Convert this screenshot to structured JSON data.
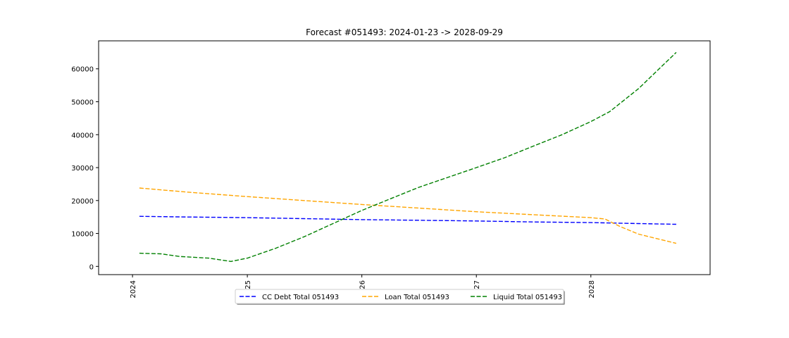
{
  "chart_data": {
    "type": "line",
    "title": "Forecast #051493: 2024-01-23 -> 2028-09-29",
    "xlabel": "",
    "ylabel": "",
    "x_range": [
      "2023-09-15",
      "2029-01-15"
    ],
    "ylim": [
      -2500,
      68500
    ],
    "x_ticks": [
      {
        "date": "2024-01-01",
        "label": "2024"
      },
      {
        "date": "2025-01-01",
        "label": "2025"
      },
      {
        "date": "2026-01-01",
        "label": "2026"
      },
      {
        "date": "2027-01-01",
        "label": "2027"
      },
      {
        "date": "2028-01-01",
        "label": "2028"
      }
    ],
    "y_ticks": [
      0,
      10000,
      20000,
      30000,
      40000,
      50000,
      60000
    ],
    "y_tick_labels": [
      "0",
      "10000",
      "20000",
      "30000",
      "40000",
      "50000",
      "60000"
    ],
    "grid": false,
    "legend_position": "bottom-center",
    "series": [
      {
        "name": "CC Debt Total 051493",
        "color": "#0000ff",
        "style": "dashed",
        "points": [
          [
            "2024-01-23",
            15200
          ],
          [
            "2024-07-01",
            15000
          ],
          [
            "2025-01-01",
            14800
          ],
          [
            "2025-07-01",
            14500
          ],
          [
            "2026-01-01",
            14200
          ],
          [
            "2026-07-01",
            14000
          ],
          [
            "2027-01-01",
            13800
          ],
          [
            "2027-07-01",
            13500
          ],
          [
            "2028-01-01",
            13300
          ],
          [
            "2028-06-01",
            13000
          ],
          [
            "2028-09-29",
            12800
          ]
        ]
      },
      {
        "name": "Loan Total 051493",
        "color": "#ffa500",
        "style": "dashed",
        "points": [
          [
            "2024-01-23",
            23800
          ],
          [
            "2024-07-01",
            22500
          ],
          [
            "2025-01-01",
            21200
          ],
          [
            "2025-07-01",
            20000
          ],
          [
            "2026-01-01",
            18800
          ],
          [
            "2026-07-01",
            17700
          ],
          [
            "2027-01-01",
            16600
          ],
          [
            "2027-07-01",
            15700
          ],
          [
            "2028-01-01",
            14800
          ],
          [
            "2028-02-15",
            14400
          ],
          [
            "2028-04-01",
            12200
          ],
          [
            "2028-06-01",
            9800
          ],
          [
            "2028-09-29",
            7000
          ]
        ]
      },
      {
        "name": "Liquid Total 051493",
        "color": "#008000",
        "style": "dashed",
        "points": [
          [
            "2024-01-23",
            4000
          ],
          [
            "2024-04-01",
            3800
          ],
          [
            "2024-06-01",
            3000
          ],
          [
            "2024-09-01",
            2500
          ],
          [
            "2024-11-10",
            1500
          ],
          [
            "2025-01-01",
            2500
          ],
          [
            "2025-04-01",
            5500
          ],
          [
            "2025-07-01",
            9000
          ],
          [
            "2025-10-01",
            13000
          ],
          [
            "2026-01-01",
            17000
          ],
          [
            "2026-04-01",
            20500
          ],
          [
            "2026-07-01",
            24000
          ],
          [
            "2026-10-01",
            27000
          ],
          [
            "2027-01-01",
            30000
          ],
          [
            "2027-04-01",
            33000
          ],
          [
            "2027-07-01",
            36500
          ],
          [
            "2027-10-01",
            40000
          ],
          [
            "2028-01-01",
            44000
          ],
          [
            "2028-03-01",
            47000
          ],
          [
            "2028-06-01",
            54000
          ],
          [
            "2028-09-29",
            65000
          ]
        ]
      }
    ]
  }
}
